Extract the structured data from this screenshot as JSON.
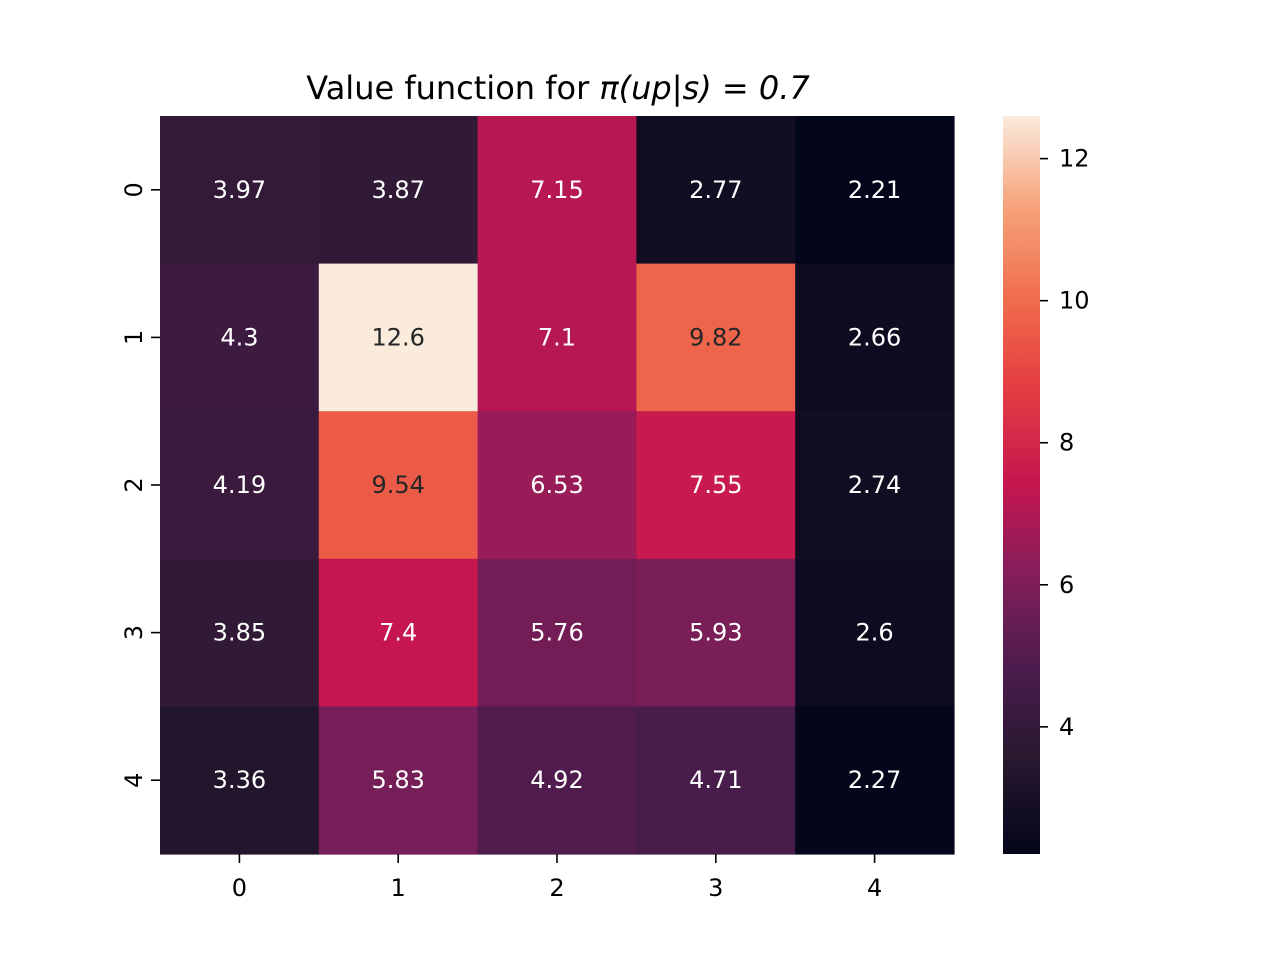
{
  "chart_data": {
    "type": "heatmap",
    "title_main": "Value function for ",
    "title_math": "π(up|s) = 0.7",
    "x_categories": [
      "0",
      "1",
      "2",
      "3",
      "4"
    ],
    "y_categories": [
      "0",
      "1",
      "2",
      "3",
      "4"
    ],
    "values": [
      [
        3.97,
        3.87,
        7.15,
        2.77,
        2.21
      ],
      [
        4.3,
        12.6,
        7.1,
        9.82,
        2.66
      ],
      [
        4.19,
        9.54,
        6.53,
        7.55,
        2.74
      ],
      [
        3.85,
        7.4,
        5.76,
        5.93,
        2.6
      ],
      [
        3.36,
        5.83,
        4.92,
        4.71,
        2.27
      ]
    ],
    "cell_labels": [
      [
        "3.97",
        "3.87",
        "7.15",
        "2.77",
        "2.21"
      ],
      [
        "4.3",
        "12.6",
        "7.1",
        "9.82",
        "2.66"
      ],
      [
        "4.19",
        "9.54",
        "6.53",
        "7.55",
        "2.74"
      ],
      [
        "3.85",
        "7.4",
        "5.76",
        "5.93",
        "2.6"
      ],
      [
        "3.36",
        "5.83",
        "4.92",
        "4.71",
        "2.27"
      ]
    ],
    "colorbar": {
      "range": [
        2.21,
        12.6
      ],
      "ticks": [
        4,
        6,
        8,
        10,
        12
      ],
      "colormap": "rocket"
    },
    "grid": false,
    "legend": "colorbar-right"
  }
}
